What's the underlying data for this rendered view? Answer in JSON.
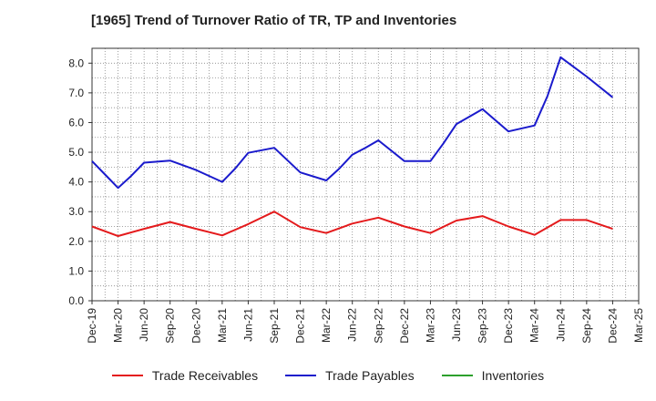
{
  "chart_data": {
    "type": "line",
    "title": "[1965]  Trend of Turnover Ratio of TR, TP and Inventories",
    "xlabel": "",
    "ylabel": "",
    "ylim": [
      0,
      8.5
    ],
    "yticks": [
      "0.0",
      "1.0",
      "2.0",
      "3.0",
      "4.0",
      "5.0",
      "6.0",
      "7.0",
      "8.0"
    ],
    "grid": true,
    "legend_position": "bottom",
    "categories": [
      "Dec-19",
      "Mar-20",
      "Jun-20",
      "Sep-20",
      "Dec-20",
      "Mar-21",
      "Jun-21",
      "Sep-21",
      "Dec-21",
      "Mar-22",
      "Jun-22",
      "Sep-22",
      "Dec-22",
      "Mar-23",
      "Jun-23",
      "Sep-23",
      "Dec-23",
      "Mar-24",
      "Jun-24",
      "Sep-24",
      "Dec-24",
      "Mar-25"
    ],
    "series": [
      {
        "name": "Trade Receivables",
        "color": "#e41a1c",
        "points": [
          [
            0,
            2.5
          ],
          [
            1,
            2.18
          ],
          [
            2,
            2.42
          ],
          [
            3,
            2.65
          ],
          [
            4,
            2.42
          ],
          [
            5,
            2.2
          ],
          [
            6,
            2.58
          ],
          [
            7,
            3.0
          ],
          [
            8,
            2.48
          ],
          [
            9,
            2.28
          ],
          [
            10,
            2.6
          ],
          [
            11,
            2.8
          ],
          [
            12,
            2.5
          ],
          [
            13,
            2.28
          ],
          [
            14,
            2.7
          ],
          [
            15,
            2.85
          ],
          [
            16,
            2.5
          ],
          [
            17,
            2.22
          ],
          [
            18,
            2.72
          ],
          [
            19,
            2.72
          ],
          [
            20,
            2.42
          ]
        ]
      },
      {
        "name": "Trade Payables",
        "color": "#1a1acc",
        "points": [
          [
            0,
            4.7
          ],
          [
            0.5,
            4.25
          ],
          [
            1,
            3.8
          ],
          [
            1.5,
            4.2
          ],
          [
            2,
            4.65
          ],
          [
            3,
            4.72
          ],
          [
            4,
            4.4
          ],
          [
            5,
            4.0
          ],
          [
            5.5,
            4.45
          ],
          [
            6,
            4.98
          ],
          [
            7,
            5.15
          ],
          [
            8,
            4.32
          ],
          [
            9,
            4.05
          ],
          [
            9.5,
            4.45
          ],
          [
            10,
            4.92
          ],
          [
            10.5,
            5.15
          ],
          [
            11,
            5.4
          ],
          [
            12,
            4.7
          ],
          [
            13,
            4.7
          ],
          [
            13.5,
            5.3
          ],
          [
            14,
            5.95
          ],
          [
            15,
            6.45
          ],
          [
            16,
            5.7
          ],
          [
            17,
            5.9
          ],
          [
            17.5,
            6.9
          ],
          [
            18,
            8.2
          ],
          [
            19,
            7.55
          ],
          [
            20,
            6.85
          ]
        ]
      },
      {
        "name": "Inventories",
        "color": "#2ca02c",
        "points": []
      }
    ]
  }
}
